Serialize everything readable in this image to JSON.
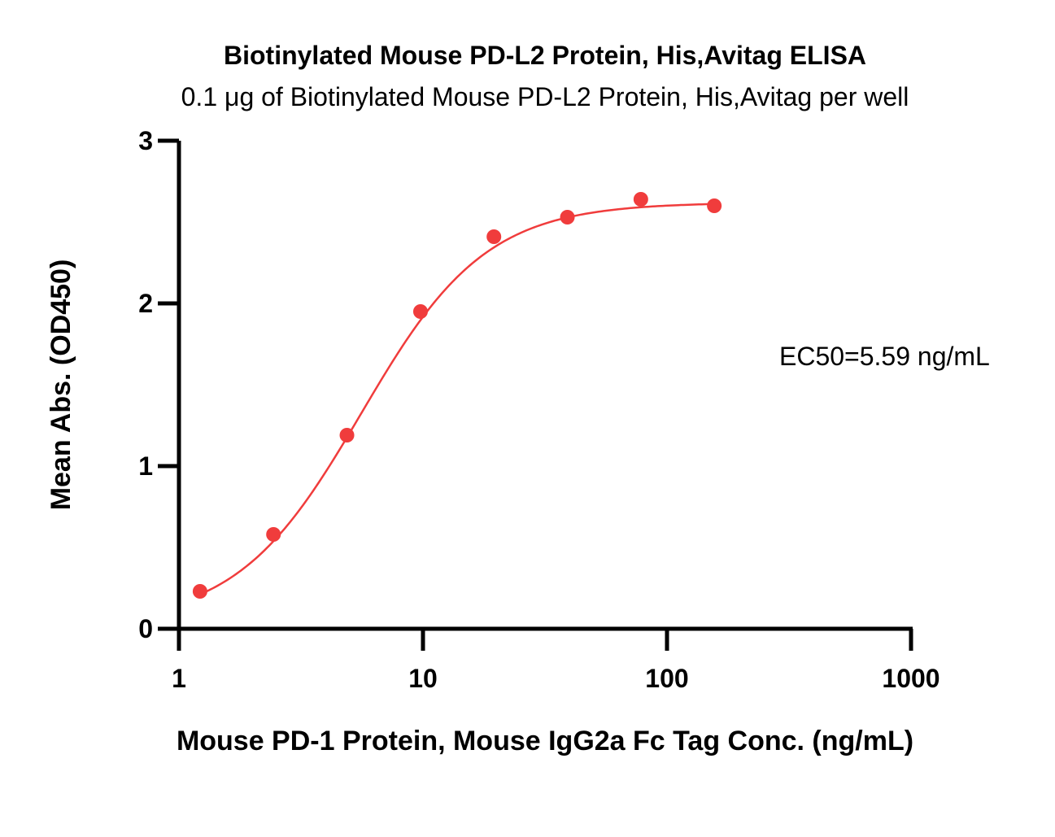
{
  "chart_data": {
    "type": "scatter",
    "title": "Biotinylated Mouse PD-L2 Protein, His,Avitag ELISA",
    "subtitle": "0.1 μg of Biotinylated Mouse PD-L2 Protein, His,Avitag per well",
    "xlabel": "Mouse PD-1 Protein, Mouse IgG2a Fc Tag Conc. (ng/mL)",
    "ylabel": "Mean Abs. (OD450)",
    "xscale": "log",
    "xlim": [
      1,
      1000
    ],
    "ylim": [
      0,
      3
    ],
    "x_ticks": [
      1,
      10,
      100,
      1000
    ],
    "x_tick_labels": [
      "1",
      "10",
      "100",
      "1000"
    ],
    "y_ticks": [
      0,
      1,
      2,
      3
    ],
    "y_tick_labels": [
      "0",
      "1",
      "2",
      "3"
    ],
    "annotation": "EC50=5.59 ng/mL",
    "grid": false,
    "series": [
      {
        "color": "#f03c3c",
        "x": [
          1.22,
          2.44,
          4.88,
          9.77,
          19.53,
          39.06,
          78.13,
          156.25
        ],
        "y": [
          0.23,
          0.58,
          1.19,
          1.95,
          2.41,
          2.53,
          2.64,
          2.6
        ],
        "fit": {
          "model": "4PL",
          "bottom": 0.03,
          "top": 2.62,
          "ec50": 5.59,
          "hill": 1.7
        }
      }
    ]
  }
}
